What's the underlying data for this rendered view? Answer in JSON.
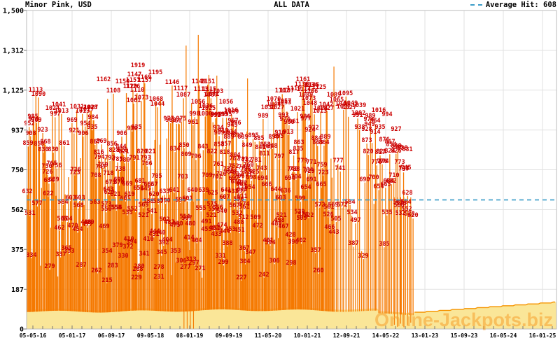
{
  "header": {
    "title": "Minor Pink, USD",
    "center_label": "ALL DATA",
    "legend_label": "Average Hit: 608"
  },
  "watermark": "Online-Jackpots.biz",
  "chart_data": {
    "type": "bar",
    "description": "Dense jackpot hit history: one orange vertical spike per hit with its red value label on top; pale-yellow current-seed band along the bottom; dashed horizontal average line. Data runs from 05-05-16 until early 2023, after which only the growing seed band continues.",
    "title": "Minor Pink, USD",
    "currency": "USD",
    "x_tick_labels": [
      "05-05-16",
      "05-01-17",
      "06-09-17",
      "09-05-18",
      "08-01-19",
      "09-09-19",
      "11-05-20",
      "10-01-21",
      "12-09-21",
      "14-05-22",
      "13-01-23",
      "15-09-23",
      "16-05-24",
      "16-01-25"
    ],
    "y_tick_values": [
      0,
      187,
      375,
      562,
      750,
      937,
      1125,
      1312,
      1500
    ],
    "y_tick_labels": [
      "0",
      "187",
      "375",
      "562",
      "750",
      "937",
      "1,125",
      "1,312",
      "1,500"
    ],
    "ylim": [
      0,
      1500
    ],
    "average_hit": 608,
    "legend_position": "top-right",
    "grid": true,
    "data_end_fraction": 0.732,
    "envelope_top": [
      [
        0,
        1130
      ],
      [
        0.05,
        1115
      ],
      [
        0.09,
        1010
      ],
      [
        0.13,
        1065
      ],
      [
        0.17,
        1150
      ],
      [
        0.21,
        1160
      ],
      [
        0.245,
        1100
      ],
      [
        0.28,
        1085
      ],
      [
        0.315,
        1105
      ],
      [
        0.36,
        1085
      ],
      [
        0.4,
        1000
      ],
      [
        0.435,
        955
      ],
      [
        0.47,
        1040
      ],
      [
        0.5,
        1115
      ],
      [
        0.53,
        1130
      ],
      [
        0.56,
        1085
      ],
      [
        0.6,
        1070
      ],
      [
        0.635,
        1005
      ],
      [
        0.665,
        985
      ],
      [
        0.69,
        930
      ],
      [
        0.705,
        855
      ],
      [
        0.715,
        760
      ],
      [
        0.725,
        645
      ],
      [
        0.732,
        580
      ]
    ],
    "labeled_peaks": [
      [
        0.145,
        1162
      ],
      [
        0.181,
        1150
      ],
      [
        0.201,
        1157
      ],
      [
        0.204,
        1147,
        1185
      ],
      [
        0.21,
        1919,
        1228
      ],
      [
        0.196,
        1129
      ],
      [
        0.243,
        1195
      ],
      [
        0.291,
        1117
      ],
      [
        0.329,
        1113
      ],
      [
        0.358,
        1103
      ],
      [
        0.35,
        1091
      ],
      [
        0.377,
        1056
      ],
      [
        0.386,
        1016
      ],
      [
        0.456,
        1030
      ],
      [
        0.473,
        1027
      ],
      [
        0.466,
        1044
      ],
      [
        0.486,
        1053
      ],
      [
        0.491,
        1107
      ],
      [
        0.505,
        1119
      ],
      [
        0.519,
        1136
      ],
      [
        0.536,
        1134
      ],
      [
        0.552,
        1125
      ],
      [
        0.523,
        1114
      ],
      [
        0.527,
        1089
      ],
      [
        0.532,
        1073
      ],
      [
        0.535,
        1048
      ],
      [
        0.58,
        1089
      ],
      [
        0.585,
        1065
      ],
      [
        0.596,
        1046
      ],
      [
        0.612,
        1049
      ],
      [
        0.627,
        1039
      ],
      [
        0.609,
        1027
      ],
      [
        0.553,
        1013
      ],
      [
        0.626,
        1002
      ],
      [
        0.664,
        1016
      ],
      [
        0.68,
        994
      ],
      [
        0.527,
        977
      ],
      [
        0.505,
        961
      ],
      [
        0.646,
        974
      ],
      [
        0.647,
        949
      ],
      [
        0.642,
        928
      ],
      [
        0.667,
        935
      ],
      [
        0.658,
        914
      ],
      [
        0.697,
        927
      ],
      [
        0.675,
        876
      ],
      [
        0.686,
        867
      ],
      [
        0.688,
        854
      ],
      [
        0.697,
        848
      ],
      [
        0.709,
        838
      ],
      [
        0.719,
        831
      ],
      [
        0.67,
        821
      ],
      [
        0.674,
        774
      ],
      [
        0.655,
        700
      ],
      [
        0.712,
        743
      ],
      [
        0.716,
        745
      ],
      [
        0.701,
        583
      ],
      [
        0.716,
        584
      ],
      [
        0.703,
        566
      ],
      [
        0.717,
        552
      ],
      [
        0.705,
        532
      ],
      [
        0.362,
        934
      ],
      [
        0.371,
        919
      ],
      [
        0.387,
        914
      ],
      [
        0.382,
        908
      ],
      [
        0.399,
        897
      ],
      [
        0.466,
        890
      ],
      [
        0.476,
        895
      ],
      [
        0.535,
        924
      ],
      [
        0.363,
        853
      ],
      [
        0.416,
        849
      ],
      [
        0.374,
        818
      ],
      [
        0.392,
        787
      ],
      [
        0.408,
        783
      ],
      [
        0.416,
        782
      ],
      [
        0.538,
        771
      ],
      [
        0.362,
        761
      ],
      [
        0.391,
        752
      ],
      [
        0.387,
        728
      ],
      [
        0.41,
        748
      ],
      [
        0.416,
        717
      ],
      [
        0.402,
        706
      ],
      [
        0.391,
        697
      ],
      [
        0.395,
        680
      ],
      [
        0.407,
        672
      ],
      [
        0.421,
        654
      ],
      [
        0.406,
        665
      ],
      [
        0.377,
        641
      ],
      [
        0.39,
        633
      ],
      [
        0.407,
        611
      ],
      [
        0.374,
        607
      ],
      [
        0.351,
        625
      ],
      [
        0.4,
        596
      ],
      [
        0.411,
        574
      ],
      [
        0.35,
        575
      ],
      [
        0.361,
        556
      ],
      [
        0.411,
        561
      ],
      [
        0.349,
        521
      ],
      [
        0.522,
        524
      ],
      [
        0.519,
        509
      ],
      [
        0.339,
        491
      ],
      [
        0.369,
        540
      ],
      [
        0.477,
        498
      ],
      [
        0.4,
        488
      ],
      [
        0.485,
        467
      ],
      [
        0.339,
        455
      ],
      [
        0.357,
        459
      ],
      [
        0.374,
        444
      ],
      [
        0.358,
        433
      ],
      [
        0.14,
        747
      ],
      [
        0.155,
        718
      ],
      [
        0.175,
        690
      ],
      [
        0.19,
        669
      ],
      [
        0.212,
        651
      ],
      [
        0.225,
        645
      ],
      [
        0.24,
        620
      ],
      [
        0.13,
        583
      ],
      [
        0.15,
        573
      ],
      [
        0.17,
        556
      ],
      [
        0.2,
        552
      ],
      [
        0.22,
        521
      ],
      [
        0.26,
        502
      ],
      [
        0.27,
        487
      ],
      [
        0.28,
        475
      ],
      [
        0.242,
        444
      ],
      [
        0.252,
        440
      ],
      [
        0.23,
        410
      ],
      [
        0.198,
        394
      ],
      [
        0.172,
        379
      ],
      [
        0.192,
        372
      ],
      [
        0.152,
        354
      ],
      [
        0.222,
        341
      ],
      [
        0.282,
        353
      ],
      [
        0.182,
        330
      ],
      [
        0.31,
        313
      ],
      [
        0.292,
        306
      ],
      [
        0.25,
        278
      ],
      [
        0.162,
        283
      ],
      [
        0.132,
        262
      ],
      [
        0.208,
        229
      ],
      [
        0.3,
        277
      ]
    ],
    "outlier_spikes": [
      [
        0.301,
        1335
      ],
      [
        0.324,
        1385
      ],
      [
        0.344,
        1197
      ],
      [
        0.359,
        1193
      ],
      [
        0.417,
        1180
      ],
      [
        0.52,
        1140
      ],
      [
        0.58,
        1236
      ]
    ],
    "zero_drop_lines_f": [
      0.297,
      0.303,
      0.309,
      0.315
    ],
    "right_drop_lines": [
      [
        0.694,
        20
      ],
      [
        0.7,
        10
      ],
      [
        0.706,
        25
      ],
      [
        0.712,
        8
      ],
      [
        0.719,
        18
      ],
      [
        0.725,
        30
      ]
    ],
    "seed_band": {
      "pre_top_value": 95,
      "post_start_value": 79,
      "post_end_value": 128
    },
    "spike_value_floor": 200,
    "render_seed": 1337,
    "colors": {
      "spike": "#F57900",
      "label": "#CC0000",
      "band": "#FAE698",
      "band_edge": "#F59400",
      "average_line": "#3D9DC8",
      "grid": "#E2E2E2",
      "border": "#BBBBBB",
      "tick": "#777777",
      "axis_text": "#000000"
    }
  }
}
